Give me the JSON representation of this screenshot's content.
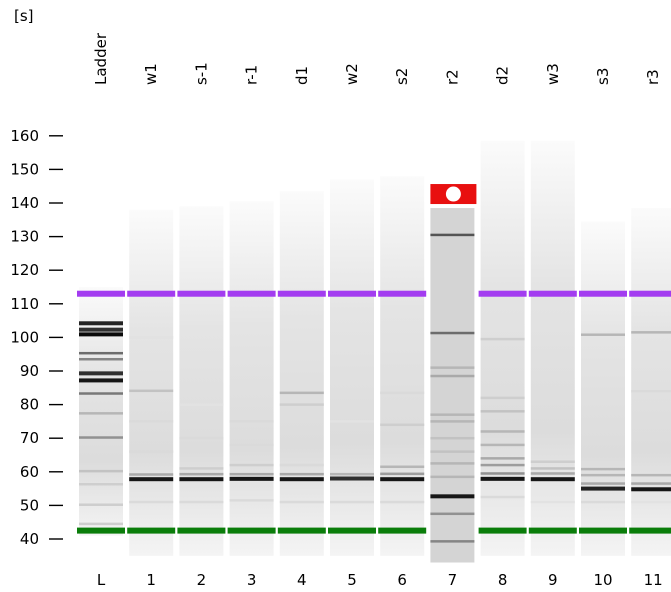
{
  "unit_label": "[s]",
  "chart_data": {
    "type": "gel",
    "title": "",
    "y_axis": {
      "unit": "s",
      "range": [
        36,
        167
      ],
      "ticks": [
        40,
        50,
        60,
        70,
        80,
        90,
        100,
        110,
        120,
        130,
        140,
        150,
        160
      ]
    },
    "upper_marker": {
      "value": 113,
      "color": "#a33cf0"
    },
    "lower_marker": {
      "value": 42.5,
      "color": "#0a7d0a"
    },
    "lanes": [
      {
        "number": "L",
        "sample": "Ladder",
        "top": 115,
        "bottom": 41,
        "error": false,
        "bands": [
          [
            104.2,
            0.9
          ],
          [
            102.3,
            0.85
          ],
          [
            100.9,
            1
          ],
          [
            95.3,
            0.6
          ],
          [
            93.5,
            0.5
          ],
          [
            89.3,
            0.85
          ],
          [
            87.2,
            0.95
          ],
          [
            83.3,
            0.55
          ],
          [
            77.4,
            0.3
          ],
          [
            70.2,
            0.45
          ],
          [
            60.2,
            0.25
          ],
          [
            56.3,
            0.2
          ],
          [
            50.2,
            0.2
          ],
          [
            44.5,
            0.2
          ]
        ]
      },
      {
        "number": "1",
        "sample": "w1",
        "top": 138,
        "bottom": 35,
        "error": false,
        "bands": [
          [
            57.8,
            0.95
          ],
          [
            59.2,
            0.35
          ],
          [
            84.1,
            0.25
          ],
          [
            100,
            0.12
          ],
          [
            75,
            0.15
          ],
          [
            66,
            0.15
          ],
          [
            51,
            0.15
          ]
        ]
      },
      {
        "number": "2",
        "sample": "s-1",
        "top": 139,
        "bottom": 35,
        "error": false,
        "bands": [
          [
            57.8,
            0.95
          ],
          [
            59.3,
            0.35
          ],
          [
            61,
            0.2
          ],
          [
            80,
            0.12
          ],
          [
            70,
            0.15
          ],
          [
            51,
            0.15
          ]
        ]
      },
      {
        "number": "3",
        "sample": "r-1",
        "top": 140.5,
        "bottom": 35,
        "error": false,
        "bands": [
          [
            57.9,
            0.95
          ],
          [
            59.3,
            0.35
          ],
          [
            62,
            0.2
          ],
          [
            75,
            0.15
          ],
          [
            68,
            0.15
          ],
          [
            51.5,
            0.15
          ]
        ]
      },
      {
        "number": "4",
        "sample": "d1",
        "top": 143.5,
        "bottom": 35,
        "error": false,
        "bands": [
          [
            57.8,
            0.95
          ],
          [
            59.3,
            0.35
          ],
          [
            83.5,
            0.3
          ],
          [
            80,
            0.2
          ],
          [
            62,
            0.15
          ],
          [
            51,
            0.15
          ]
        ]
      },
      {
        "number": "5",
        "sample": "w2",
        "top": 147,
        "bottom": 35,
        "error": false,
        "bands": [
          [
            58,
            0.85
          ],
          [
            59.3,
            0.3
          ],
          [
            75,
            0.12
          ],
          [
            51,
            0.15
          ]
        ]
      },
      {
        "number": "6",
        "sample": "s2",
        "top": 148,
        "bottom": 35,
        "error": false,
        "bands": [
          [
            57.8,
            0.95
          ],
          [
            59.4,
            0.4
          ],
          [
            61.5,
            0.3
          ],
          [
            74,
            0.2
          ],
          [
            83.5,
            0.15
          ],
          [
            51,
            0.15
          ]
        ]
      },
      {
        "number": "7",
        "sample": "r2",
        "top": 138.5,
        "bottom": 33,
        "error": true,
        "bands": [
          [
            130.5,
            0.7
          ],
          [
            101.3,
            0.6
          ],
          [
            91,
            0.3
          ],
          [
            88.5,
            0.35
          ],
          [
            77,
            0.3
          ],
          [
            75,
            0.3
          ],
          [
            70,
            0.25
          ],
          [
            66,
            0.25
          ],
          [
            62.5,
            0.3
          ],
          [
            58.5,
            0.3
          ],
          [
            52.7,
            0.95
          ],
          [
            47.5,
            0.45
          ],
          [
            39.3,
            0.5
          ]
        ]
      },
      {
        "number": "8",
        "sample": "d2",
        "top": 158.5,
        "bottom": 35,
        "error": false,
        "bands": [
          [
            57.9,
            0.95
          ],
          [
            59.5,
            0.45
          ],
          [
            62,
            0.4
          ],
          [
            64,
            0.35
          ],
          [
            68,
            0.3
          ],
          [
            72,
            0.3
          ],
          [
            78,
            0.25
          ],
          [
            82,
            0.2
          ],
          [
            99.5,
            0.2
          ],
          [
            52.5,
            0.15
          ]
        ]
      },
      {
        "number": "9",
        "sample": "w3",
        "top": 158.5,
        "bottom": 35,
        "error": false,
        "bands": [
          [
            57.8,
            0.95
          ],
          [
            59.5,
            0.35
          ],
          [
            61,
            0.25
          ],
          [
            63,
            0.2
          ],
          [
            51,
            0.12
          ]
        ]
      },
      {
        "number": "10",
        "sample": "s3",
        "top": 134.5,
        "bottom": 35,
        "error": false,
        "bands": [
          [
            55,
            0.9
          ],
          [
            56.5,
            0.35
          ],
          [
            59,
            0.3
          ],
          [
            60.8,
            0.3
          ],
          [
            100.8,
            0.3
          ],
          [
            51,
            0.15
          ]
        ]
      },
      {
        "number": "11",
        "sample": "r3",
        "top": 138.5,
        "bottom": 35,
        "error": false,
        "bands": [
          [
            54.8,
            0.95
          ],
          [
            56.5,
            0.35
          ],
          [
            59,
            0.3
          ],
          [
            101.5,
            0.3
          ],
          [
            84,
            0.15
          ],
          [
            51,
            0.12
          ]
        ]
      }
    ]
  }
}
